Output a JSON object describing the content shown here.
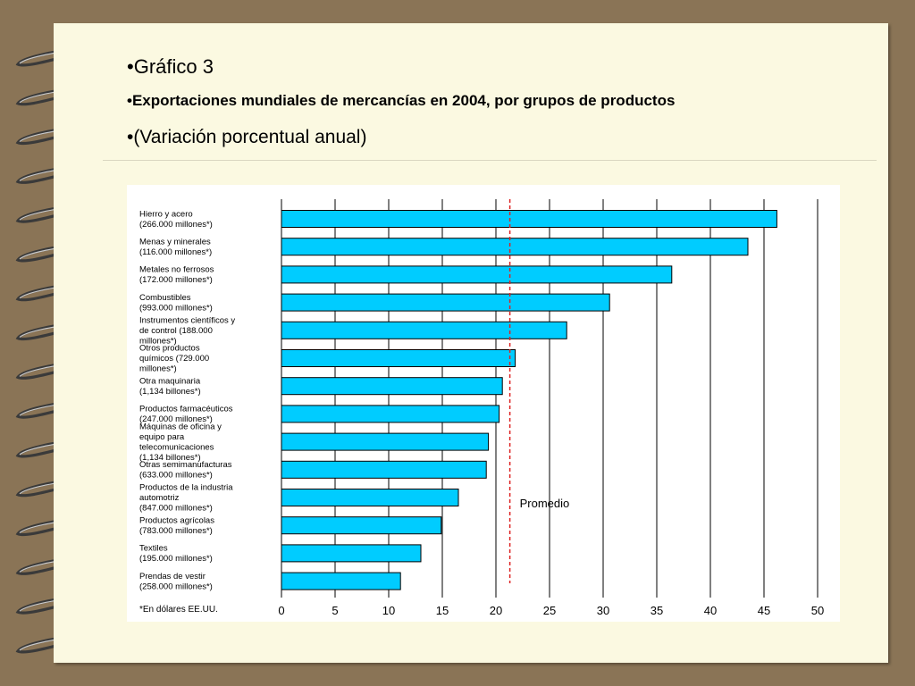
{
  "slide": {
    "bullet": "•",
    "line1": "Gráfico 3",
    "line2": "Exportaciones mundiales de mercancías en 2004, por grupos de productos",
    "line3": "(Variación porcentual anual)"
  },
  "colors": {
    "background": "#8a7456",
    "page": "#fbf9e1",
    "bar": "#00ccff",
    "average_line": "#dd2222"
  },
  "chart_data": {
    "type": "bar",
    "orientation": "horizontal",
    "categories": [
      [
        "Hierro y acero",
        "(266.000 millones*)"
      ],
      [
        "Menas y minerales",
        "(116.000 millones*)"
      ],
      [
        "Metales no ferrosos",
        "(172.000 millones*)"
      ],
      [
        "Combustibles",
        "(993.000 millones*)"
      ],
      [
        "Instrumentos científicos y",
        "de control (188.000",
        "millones*)"
      ],
      [
        "Otros productos",
        "químicos (729.000",
        "millones*)"
      ],
      [
        "Otra maquinaria",
        "(1,134 billones*)"
      ],
      [
        "Productos farmacéuticos",
        "(247.000 millones*)"
      ],
      [
        "Máquinas de oficina y",
        "equipo para",
        "telecomunicaciones",
        "(1,134 billones*)"
      ],
      [
        "Otras semimanufacturas",
        "(633.000 millones*)"
      ],
      [
        "Productos de la industria",
        "automotriz",
        "(847.000 millones*)"
      ],
      [
        "Productos agrícolas",
        "(783.000 millones*)"
      ],
      [
        "Textiles",
        "(195.000 millones*)"
      ],
      [
        "Prendas de vestir",
        "(258.000 millones*)"
      ]
    ],
    "values": [
      46.2,
      43.5,
      36.4,
      30.6,
      26.6,
      21.8,
      20.6,
      20.3,
      19.3,
      19.1,
      16.5,
      14.9,
      13.0,
      11.1
    ],
    "average": 21.3,
    "average_label": "Promedio",
    "xlim": [
      0,
      50
    ],
    "xticks": [
      0,
      5,
      10,
      15,
      20,
      25,
      30,
      35,
      40,
      45,
      50
    ],
    "footnote": "*En dólares EE.UU.",
    "grid": "vertical"
  }
}
